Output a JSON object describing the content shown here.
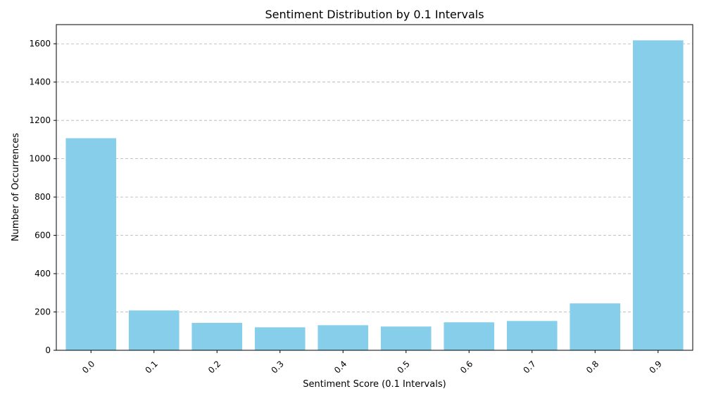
{
  "chart_data": {
    "type": "bar",
    "title": "Sentiment Distribution by 0.1 Intervals",
    "xlabel": "Sentiment Score (0.1 Intervals)",
    "ylabel": "Number of Occurrences",
    "categories": [
      "0.0",
      "0.1",
      "0.2",
      "0.3",
      "0.4",
      "0.5",
      "0.6",
      "0.7",
      "0.8",
      "0.9"
    ],
    "values": [
      1107,
      208,
      143,
      120,
      131,
      124,
      146,
      153,
      245,
      1618
    ],
    "ylim": [
      0,
      1700
    ],
    "yticks": [
      0,
      200,
      400,
      600,
      800,
      1000,
      1200,
      1400,
      1600
    ],
    "grid": "y-dashed",
    "bar_color": "#87ceeb",
    "xtick_rotation": 45
  }
}
